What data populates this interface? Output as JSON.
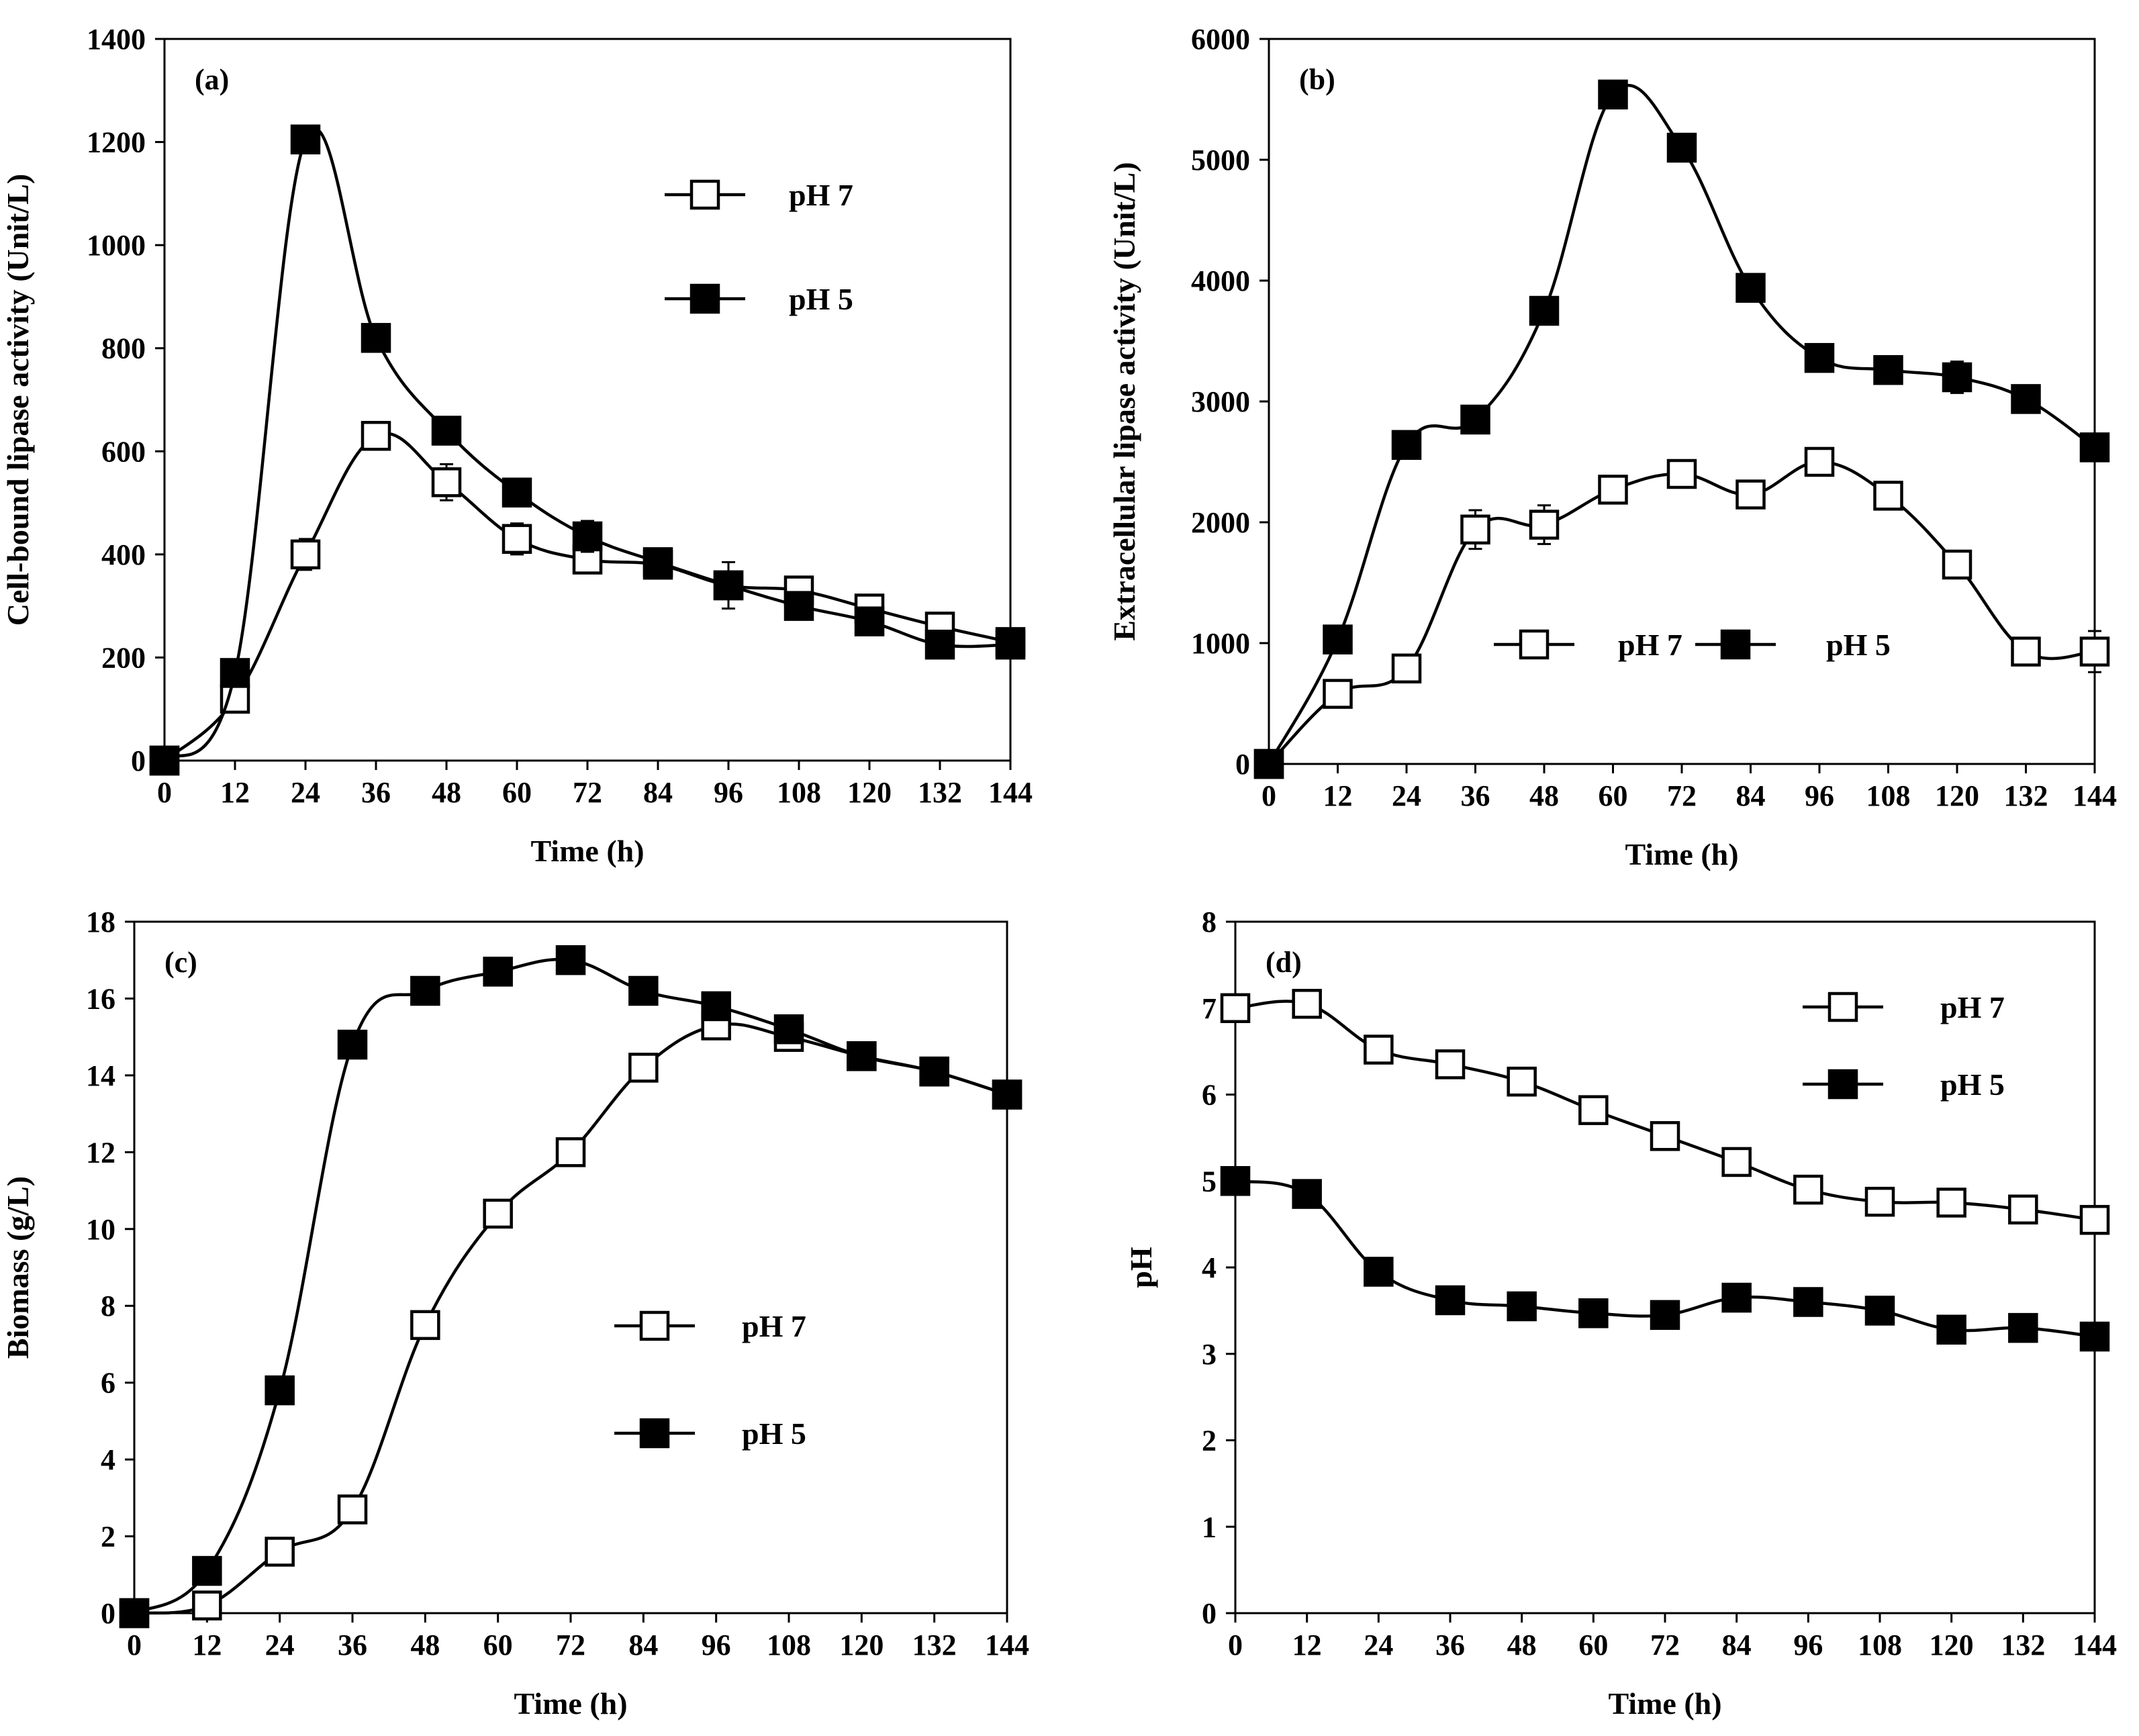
{
  "chart_data": [
    {
      "panel": "(a)",
      "type": "line",
      "xlabel": "Time (h)",
      "ylabel": "Cell-bound lipase activity (Unit/L)",
      "xlim": [
        0,
        144
      ],
      "ylim": [
        0,
        1400
      ],
      "xticks": [
        "0",
        "12",
        "24",
        "36",
        "48",
        "60",
        "72",
        "84",
        "96",
        "108",
        "120",
        "132",
        "144"
      ],
      "yticks": [
        "0",
        "200",
        "400",
        "600",
        "800",
        "1000",
        "1200",
        "1400"
      ],
      "legend_position": "upper-right-vertical",
      "x": [
        0,
        12,
        24,
        36,
        48,
        60,
        72,
        84,
        96,
        108,
        120,
        132,
        144
      ],
      "series": [
        {
          "name": "pH 7",
          "marker": "open-square",
          "values": [
            0,
            120,
            400,
            630,
            540,
            430,
            390,
            380,
            340,
            330,
            295,
            260,
            230
          ],
          "errors": [
            0,
            15,
            30,
            20,
            35,
            30,
            20,
            15,
            45,
            20,
            20,
            20,
            10
          ]
        },
        {
          "name": "pH 5",
          "marker": "filled-square",
          "values": [
            0,
            170,
            1205,
            820,
            640,
            520,
            435,
            385,
            340,
            300,
            270,
            225,
            225
          ],
          "errors": [
            0,
            10,
            10,
            10,
            10,
            10,
            30,
            10,
            10,
            10,
            10,
            10,
            10
          ]
        }
      ]
    },
    {
      "panel": "(b)",
      "type": "line",
      "xlabel": "Time (h)",
      "ylabel": "Extracellular lipase activity (Unit/L)",
      "xlim": [
        0,
        144
      ],
      "ylim": [
        0,
        6000
      ],
      "xticks": [
        "0",
        "12",
        "24",
        "36",
        "48",
        "60",
        "72",
        "84",
        "96",
        "108",
        "120",
        "132",
        "144"
      ],
      "yticks": [
        "0",
        "1000",
        "2000",
        "3000",
        "4000",
        "5000",
        "6000"
      ],
      "legend_position": "middle-right-horizontal",
      "x": [
        0,
        12,
        24,
        36,
        48,
        60,
        72,
        84,
        96,
        108,
        120,
        132,
        144
      ],
      "series": [
        {
          "name": "pH 7",
          "marker": "open-square",
          "values": [
            0,
            580,
            790,
            1940,
            1980,
            2270,
            2400,
            2230,
            2500,
            2220,
            1650,
            930,
            930
          ],
          "errors": [
            0,
            60,
            60,
            160,
            160,
            70,
            100,
            60,
            90,
            100,
            100,
            100,
            170
          ]
        },
        {
          "name": "pH 5",
          "marker": "filled-square",
          "values": [
            0,
            1030,
            2640,
            2850,
            3750,
            5540,
            5100,
            3940,
            3360,
            3260,
            3200,
            3020,
            2620
          ],
          "errors": [
            0,
            40,
            40,
            40,
            60,
            40,
            40,
            40,
            40,
            60,
            130,
            40,
            40
          ]
        }
      ]
    },
    {
      "panel": "(c)",
      "type": "line",
      "xlabel": "Time (h)",
      "ylabel": "Biomass (g/L)",
      "xlim": [
        0,
        144
      ],
      "ylim": [
        0,
        18
      ],
      "xticks": [
        "0",
        "12",
        "24",
        "36",
        "48",
        "60",
        "72",
        "84",
        "96",
        "108",
        "120",
        "132",
        "144"
      ],
      "yticks": [
        "0",
        "2",
        "4",
        "6",
        "8",
        "10",
        "12",
        "14",
        "16",
        "18"
      ],
      "legend_position": "lower-right-vertical",
      "x": [
        0,
        12,
        24,
        36,
        48,
        60,
        72,
        84,
        96,
        108,
        120,
        132,
        144
      ],
      "series": [
        {
          "name": "pH 7",
          "marker": "open-square",
          "values": [
            0,
            0.2,
            1.6,
            2.7,
            7.5,
            10.4,
            12.0,
            14.2,
            15.3,
            15.0,
            14.5,
            14.1,
            13.5
          ],
          "errors": [
            0,
            0.1,
            0.1,
            0.1,
            0.1,
            0.1,
            0.1,
            0.1,
            0.1,
            0.1,
            0.1,
            0.1,
            0.1
          ]
        },
        {
          "name": "pH 5",
          "marker": "filled-square",
          "values": [
            0,
            1.1,
            5.8,
            14.8,
            16.2,
            16.7,
            17.0,
            16.2,
            15.8,
            15.2,
            14.5,
            14.1,
            13.5
          ],
          "errors": [
            0,
            0.1,
            0.1,
            0.1,
            0.1,
            0.1,
            0.1,
            0.1,
            0.1,
            0.1,
            0.1,
            0.1,
            0.1
          ]
        }
      ]
    },
    {
      "panel": "(d)",
      "type": "line",
      "xlabel": "Time (h)",
      "ylabel": "pH",
      "xlim": [
        0,
        144
      ],
      "ylim": [
        0,
        8
      ],
      "xticks": [
        "0",
        "12",
        "24",
        "36",
        "48",
        "60",
        "72",
        "84",
        "96",
        "108",
        "120",
        "132",
        "144"
      ],
      "yticks": [
        "0",
        "1",
        "2",
        "3",
        "4",
        "5",
        "6",
        "7",
        "8"
      ],
      "legend_position": "upper-right-vertical",
      "x": [
        0,
        12,
        24,
        36,
        48,
        60,
        72,
        84,
        96,
        108,
        120,
        132,
        144
      ],
      "series": [
        {
          "name": "pH 7",
          "marker": "open-square",
          "values": [
            7.0,
            7.05,
            6.52,
            6.35,
            6.15,
            5.82,
            5.52,
            5.22,
            4.9,
            4.76,
            4.75,
            4.67,
            4.55
          ],
          "errors": [
            0,
            0,
            0,
            0,
            0,
            0,
            0,
            0,
            0,
            0,
            0,
            0,
            0
          ]
        },
        {
          "name": "pH 5",
          "marker": "filled-square",
          "values": [
            5.0,
            4.85,
            3.95,
            3.62,
            3.55,
            3.47,
            3.45,
            3.65,
            3.6,
            3.5,
            3.28,
            3.3,
            3.2
          ],
          "errors": [
            0,
            0,
            0,
            0,
            0,
            0,
            0,
            0,
            0,
            0,
            0,
            0,
            0
          ]
        }
      ]
    }
  ]
}
